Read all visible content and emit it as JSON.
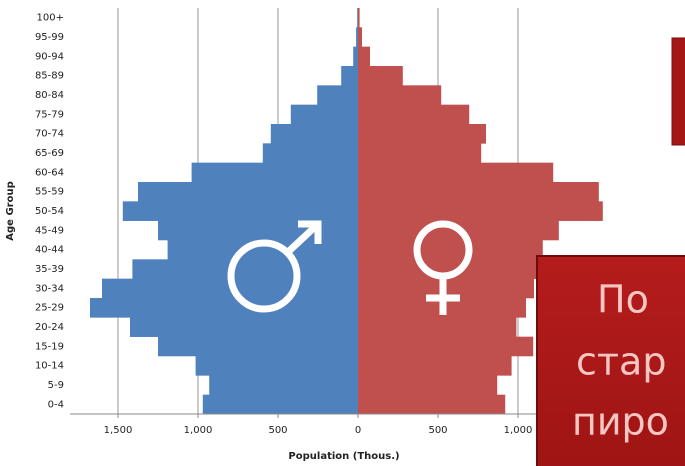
{
  "chart_data": {
    "type": "population_pyramid",
    "y_axis_label": "Age Group",
    "x_axis_label": "Population (Thous.)",
    "categories": [
      "0-4",
      "5-9",
      "10-14",
      "15-19",
      "20-24",
      "25-29",
      "30-34",
      "35-39",
      "40-44",
      "45-49",
      "50-54",
      "55-59",
      "60-64",
      "65-69",
      "70-74",
      "75-79",
      "80-84",
      "85-89",
      "90-94",
      "95-99",
      "100+"
    ],
    "series": [
      {
        "name": "Male",
        "color": "#4f81bd",
        "side": "left",
        "values": [
          970,
          930,
          1015,
          1250,
          1425,
          1675,
          1600,
          1410,
          1190,
          1250,
          1470,
          1375,
          1040,
          595,
          545,
          420,
          255,
          105,
          30,
          12,
          5
        ]
      },
      {
        "name": "Female",
        "color": "#c0504d",
        "side": "right",
        "values": [
          920,
          870,
          960,
          1095,
          990,
          1050,
          1100,
          1150,
          1155,
          1255,
          1530,
          1505,
          1220,
          770,
          800,
          695,
          520,
          280,
          75,
          25,
          10
        ]
      }
    ],
    "xlim": [
      -1800,
      2000
    ],
    "xticks": [
      {
        "value": -1500,
        "label": "1,500"
      },
      {
        "value": -1000,
        "label": "1,000"
      },
      {
        "value": -500,
        "label": "500"
      },
      0,
      500,
      {
        "value": 1000,
        "label": "1,000"
      }
    ],
    "grid": true,
    "annotations": [
      "По",
      "стар",
      "пиро"
    ]
  }
}
